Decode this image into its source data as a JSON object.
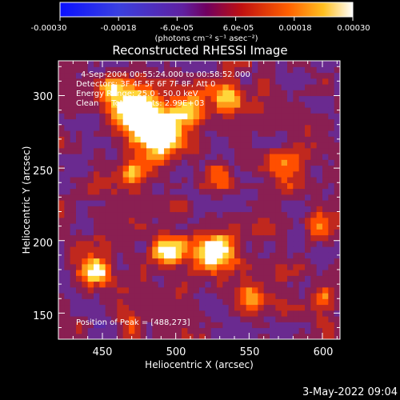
{
  "colorbar": {
    "tick_labels": [
      "-0.00030",
      "-0.00018",
      "-6.0e-05",
      "6.0e-05",
      "0.00018",
      "0.00030"
    ],
    "range": [
      -0.0003,
      0.0003
    ],
    "unit_label": "(photons cm⁻² s⁻¹ asec⁻²)"
  },
  "chart_data": {
    "type": "heatmap",
    "title": "Reconstructed RHESSI Image",
    "xlabel": "Heliocentric X (arcsec)",
    "ylabel": "Heliocentric Y (arcsec)",
    "xlim": [
      420,
      612
    ],
    "ylim": [
      132,
      324
    ],
    "x_ticks": [
      450,
      500,
      550,
      600
    ],
    "y_ticks": [
      150,
      200,
      250,
      300
    ],
    "x_tick_labels": [
      "450",
      "500",
      "550",
      "600"
    ],
    "y_tick_labels": [
      "150",
      "200",
      "250",
      "300"
    ],
    "annotations": {
      "time_range": "4-Sep-2004 00:55:24.000 to 00:58:52.000",
      "detectors": "Detectors: 3F 4F 5F 6F 7F 8F, Att 0",
      "energy_range": "Energy Range: 25.0 - 50.0 keV",
      "clean_counts": "Clean     Total counts: 2.99E+03",
      "peak_position": "Position of Peak = [488,273]"
    },
    "peak": {
      "x": 488,
      "y": 273
    },
    "grid": false,
    "colormap": [
      "#1a10ff",
      "#4a38d8",
      "#5a2aa8",
      "#6a2a90",
      "#8a1f52",
      "#c0281e",
      "#ff4f00",
      "#ff9a18",
      "#ffd63a",
      "#ffffff"
    ],
    "bright_regions": [
      {
        "x": 488,
        "y": 275,
        "sigma": 12,
        "amp": 1.0
      },
      {
        "x": 470,
        "y": 290,
        "sigma": 11,
        "amp": 0.85
      },
      {
        "x": 510,
        "y": 292,
        "sigma": 8,
        "amp": 0.6
      },
      {
        "x": 535,
        "y": 300,
        "sigma": 7,
        "amp": 0.65
      },
      {
        "x": 455,
        "y": 305,
        "sigma": 6,
        "amp": 0.55
      },
      {
        "x": 527,
        "y": 192,
        "sigma": 9,
        "amp": 0.8
      },
      {
        "x": 495,
        "y": 192,
        "sigma": 8,
        "amp": 0.75
      },
      {
        "x": 445,
        "y": 178,
        "sigma": 7,
        "amp": 0.7
      },
      {
        "x": 575,
        "y": 253,
        "sigma": 8,
        "amp": 0.55
      },
      {
        "x": 598,
        "y": 210,
        "sigma": 7,
        "amp": 0.5
      },
      {
        "x": 552,
        "y": 162,
        "sigma": 6,
        "amp": 0.5
      },
      {
        "x": 470,
        "y": 248,
        "sigma": 6,
        "amp": 0.45
      },
      {
        "x": 600,
        "y": 160,
        "sigma": 5,
        "amp": 0.4
      },
      {
        "x": 530,
        "y": 245,
        "sigma": 6,
        "amp": 0.45
      },
      {
        "x": 470,
        "y": 140,
        "sigma": 6,
        "amp": 0.45
      }
    ]
  },
  "footer": {
    "date": "3-May-2022 09:04"
  }
}
